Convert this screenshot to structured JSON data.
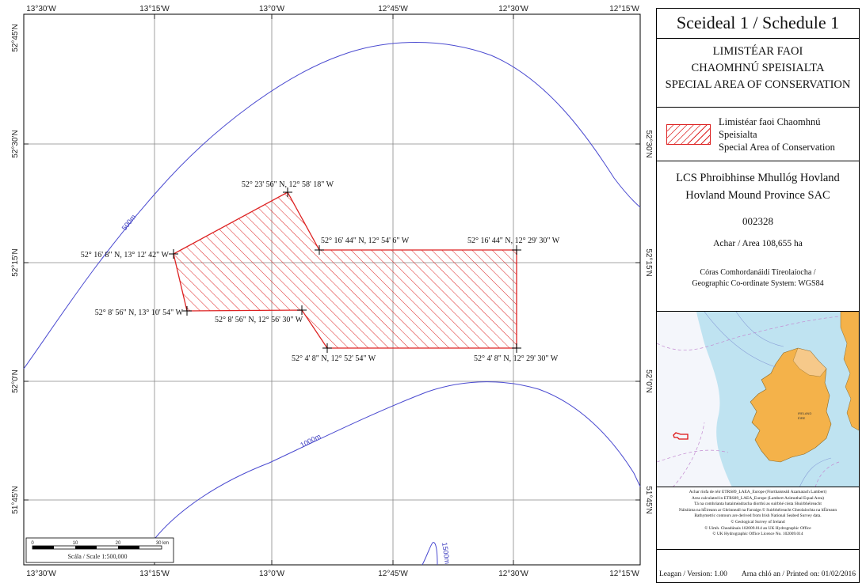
{
  "map": {
    "lon_ticks": [
      "13°30'W",
      "13°15'W",
      "13°0'W",
      "12°45'W",
      "12°30'W",
      "12°15'W"
    ],
    "lat_ticks": [
      "52°45'N",
      "52°30'N",
      "52°15'N",
      "52°0'N",
      "51°45'N"
    ],
    "contours": [
      "500m",
      "1000m",
      "1500m"
    ],
    "boundary_points": [
      "52° 23' 56\" N, 12° 58' 18\" W",
      "52° 16' 8\" N, 13° 12' 42\" W",
      "52° 16' 44\" N, 12° 54' 6\" W",
      "52° 16' 44\" N, 12° 29' 30\" W",
      "52° 8' 56\" N, 13° 10' 54\" W",
      "52° 8' 56\" N, 12° 56' 30\" W",
      "52° 4' 8\" N, 12° 52' 54\" W",
      "52° 4' 8\" N, 12° 29' 30\" W"
    ],
    "scale_ticks": [
      "0",
      "10",
      "20",
      "30 km"
    ],
    "scale_caption": "Scála / Scale 1:500,000",
    "colors": {
      "contour": "#4a4ad0",
      "boundary": "#dd2222",
      "grid": "#888888"
    }
  },
  "panel": {
    "title": "Sceideal 1 / Schedule 1",
    "area_type": [
      "LIMISTÉAR FAOI",
      "CHAOMHNÚ SPEISIALTA",
      "SPECIAL AREA OF CONSERVATION"
    ],
    "legend": [
      "Limistéar faoi Chaomhnú Speisialta",
      "Special Area of Conservation"
    ],
    "site_name_ga": "LCS Phroibhinse Mhullóg Hovland",
    "site_name_en": "Hovland Mound Province SAC",
    "site_code": "002328",
    "area": "Achar / Area 108,655 ha",
    "crs": [
      "Córas Comhordanáidí Tíreolaíocha /",
      "Geographic Co-ordinate System: WGS84"
    ],
    "inset_labels": [
      "IRELAND",
      "ÉIRE"
    ],
    "credits": [
      "Achar ríofa de réir ETRS89_LAEA_Europe (Fíorthaisteáil Azamatach Lambert)",
      "Area calculated in ETRS89_LAEA_Europe (Lambert Azimuthal Equal Area)",
      "Tá na comhrianta bataiméadracha díorthú as suirbhé cósta Shuirbhéireacht",
      "Náisiúnta na hÉireann ar Ghrinneall na Farraige.© Suirbhéireacht Gheolaíochta na hÉireann",
      "Bathymetric contours are derived from Irish National Seabed Survey data.",
      "© Geological Survey of Ireland",
      "© Uimh. Cheadúnais 102009.014 an UK Hydrographic Office",
      "© UK Hydrographic Office Licence No. 102009.014"
    ],
    "version": "Leagan / Version: 1.00",
    "printed": "Arna chló an / Printed on: 01/02/2016"
  }
}
